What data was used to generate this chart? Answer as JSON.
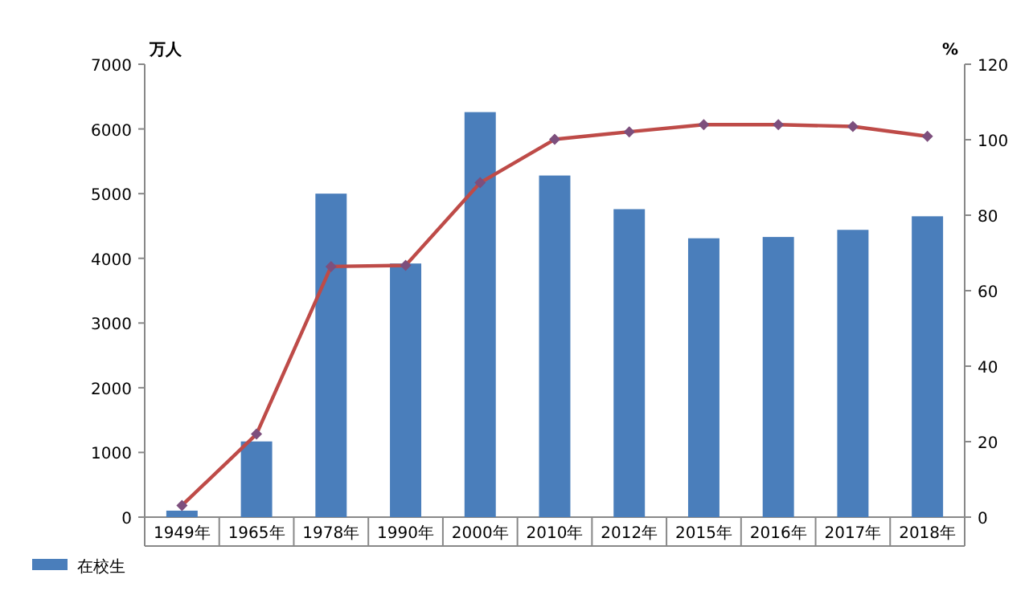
{
  "chart_data": {
    "type": "bar",
    "ylabel": "万人",
    "y2label": "%",
    "categories": [
      "1949年",
      "1965年",
      "1978年",
      "1990年",
      "2000年",
      "2010年",
      "2012年",
      "2015年",
      "2016年",
      "2017年",
      "2018年"
    ],
    "series": [
      {
        "name": "在校生",
        "color": "#4a7ebb",
        "values": [
          100,
          1170,
          5000,
          3920,
          6260,
          5280,
          4760,
          4310,
          4330,
          4440,
          4650
        ]
      },
      {
        "type": "line",
        "axis": "y2",
        "color": "#be4b48",
        "marker": "diamond",
        "values": [
          3.1,
          22,
          66.4,
          66.7,
          88.6,
          100.1,
          102.1,
          104,
          104,
          103.5,
          100.9
        ]
      }
    ],
    "ylim": [
      0,
      7000
    ],
    "yticks": [
      0,
      1000,
      2000,
      3000,
      4000,
      5000,
      6000,
      7000
    ],
    "y2lim": [
      0,
      120
    ],
    "y2ticks": [
      0,
      20,
      40,
      60,
      80,
      100,
      120
    ],
    "legend": "bottom"
  }
}
